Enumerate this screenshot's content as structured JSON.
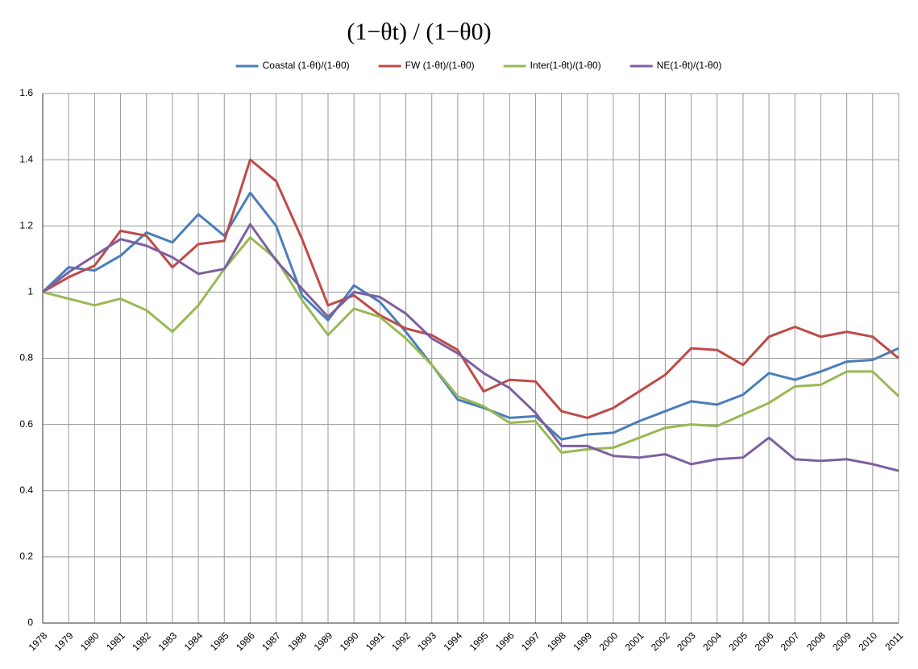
{
  "chart_data": {
    "type": "line",
    "title": "(1−θt) / (1−θ0)",
    "x": [
      1978,
      1979,
      1980,
      1981,
      1982,
      1983,
      1984,
      1985,
      1986,
      1987,
      1988,
      1989,
      1990,
      1991,
      1992,
      1993,
      1994,
      1995,
      1996,
      1997,
      1998,
      1999,
      2000,
      2001,
      2002,
      2003,
      2004,
      2005,
      2006,
      2007,
      2008,
      2009,
      2010,
      2011
    ],
    "xlim": [
      1978,
      2011
    ],
    "xticks": [
      1978,
      1979,
      1980,
      1981,
      1982,
      1983,
      1984,
      1985,
      1986,
      1987,
      1988,
      1989,
      1990,
      1991,
      1992,
      1993,
      1994,
      1995,
      1996,
      1997,
      1998,
      1999,
      2000,
      2001,
      2002,
      2003,
      2004,
      2005,
      2006,
      2007,
      2008,
      2009,
      2010,
      2011
    ],
    "ylim": [
      0,
      1.6
    ],
    "yticks": [
      0,
      0.2,
      0.4,
      0.6,
      0.8,
      1,
      1.2,
      1.4,
      1.6
    ],
    "grid": true,
    "legend": "top",
    "series": [
      {
        "name": "Coastal (1-θt)/(1-θ0)",
        "color": "#4a7ebb",
        "values": [
          1.0,
          1.075,
          1.065,
          1.11,
          1.18,
          1.15,
          1.235,
          1.17,
          1.3,
          1.2,
          0.99,
          0.915,
          1.02,
          0.97,
          0.88,
          0.78,
          0.675,
          0.65,
          0.62,
          0.625,
          0.555,
          0.57,
          0.575,
          0.61,
          0.64,
          0.67,
          0.66,
          0.69,
          0.755,
          0.735,
          0.76,
          0.79,
          0.795,
          0.83
        ]
      },
      {
        "name": "FW (1-θt)/(1-θ0)",
        "color": "#be4b48",
        "values": [
          1.0,
          1.045,
          1.08,
          1.185,
          1.17,
          1.075,
          1.145,
          1.155,
          1.4,
          1.335,
          1.16,
          0.96,
          0.99,
          0.93,
          0.89,
          0.87,
          0.825,
          0.7,
          0.735,
          0.73,
          0.64,
          0.62,
          0.65,
          0.7,
          0.75,
          0.83,
          0.825,
          0.78,
          0.865,
          0.895,
          0.865,
          0.88,
          0.865,
          0.8
        ]
      },
      {
        "name": "Inter(1-θt)/(1-θ0)",
        "color": "#98b954",
        "values": [
          1.0,
          0.98,
          0.96,
          0.98,
          0.945,
          0.88,
          0.96,
          1.07,
          1.165,
          1.1,
          0.975,
          0.87,
          0.95,
          0.925,
          0.86,
          0.78,
          0.685,
          0.655,
          0.605,
          0.61,
          0.515,
          0.525,
          0.53,
          0.56,
          0.59,
          0.6,
          0.595,
          0.63,
          0.665,
          0.715,
          0.72,
          0.76,
          0.76,
          0.685
        ]
      },
      {
        "name": "NE(1-θt)/(1-θ0)",
        "color": "#7d60a0",
        "values": [
          1.0,
          1.06,
          1.11,
          1.16,
          1.14,
          1.105,
          1.055,
          1.07,
          1.205,
          1.095,
          1.01,
          0.925,
          1.0,
          0.985,
          0.935,
          0.86,
          0.815,
          0.755,
          0.71,
          0.635,
          0.535,
          0.535,
          0.505,
          0.5,
          0.51,
          0.48,
          0.495,
          0.5,
          0.56,
          0.495,
          0.49,
          0.495,
          0.48,
          0.46
        ]
      }
    ]
  }
}
